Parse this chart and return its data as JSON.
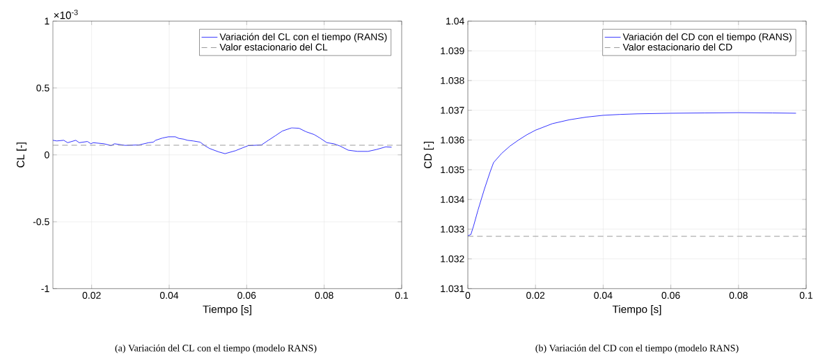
{
  "chart_data": [
    {
      "type": "line",
      "xlabel": "Tiempo [s]",
      "ylabel": "CL [-]",
      "annotations": [
        "×10$^{-3}$",
        "(a) Variación del CL con el tiempo (modelo RANS)"
      ],
      "series": [
        {
          "name": "Variación del CL con el tiempo (RANS)",
          "color": "#0000ff",
          "x": [
            0.01,
            0.011,
            0.0128,
            0.0138,
            0.0159,
            0.0168,
            0.0189,
            0.0198,
            0.0204,
            0.0232,
            0.025,
            0.0259,
            0.0286,
            0.0322,
            0.0347,
            0.0359,
            0.0365,
            0.0383,
            0.0398,
            0.0416,
            0.0425,
            0.0438,
            0.0447,
            0.0462,
            0.048,
            0.0492,
            0.0504,
            0.0528,
            0.0544,
            0.0571,
            0.0589,
            0.0604,
            0.0638,
            0.0656,
            0.0674,
            0.0692,
            0.0716,
            0.0735,
            0.0753,
            0.0774,
            0.0789,
            0.0807,
            0.0825,
            0.0841,
            0.0862,
            0.0886,
            0.0913,
            0.0935,
            0.0959,
            0.0974
          ],
          "values": [
            0.109,
            0.104,
            0.109,
            0.091,
            0.109,
            0.091,
            0.1,
            0.083,
            0.091,
            0.083,
            0.069,
            0.083,
            0.071,
            0.074,
            0.091,
            0.095,
            0.109,
            0.126,
            0.135,
            0.135,
            0.123,
            0.117,
            0.109,
            0.104,
            0.095,
            0.069,
            0.048,
            0.022,
            0.009,
            0.031,
            0.052,
            0.069,
            0.074,
            0.109,
            0.143,
            0.178,
            0.202,
            0.199,
            0.173,
            0.152,
            0.126,
            0.091,
            0.083,
            0.066,
            0.035,
            0.026,
            0.026,
            0.04,
            0.06,
            0.057
          ]
        }
      ],
      "ref_lines": [
        {
          "axis": "y",
          "value": 0.072,
          "label": "Valor estacionario del CL",
          "color": "#808080",
          "line_style": "dashed"
        }
      ],
      "xlim": [
        0.01,
        0.1
      ],
      "ylim": [
        -1,
        1
      ],
      "xticks": [
        0.02,
        0.04,
        0.06,
        0.08,
        0.1
      ],
      "yticks": [
        -1,
        -0.5,
        0,
        0.5,
        1
      ],
      "grid": true,
      "legend": "top right",
      "marker": "none"
    },
    {
      "type": "line",
      "xlabel": "Tiempo [s]",
      "ylabel": "CD [-]",
      "annotations": [
        "(b) Variación del CD con el tiempo (modelo RANS)"
      ],
      "series": [
        {
          "name": "Variación del CD con el tiempo (RANS)",
          "color": "#0000ff",
          "x": [
            0,
            0.0009,
            0.0017,
            0.003,
            0.0049,
            0.0066,
            0.0076,
            0.01,
            0.0125,
            0.015,
            0.0175,
            0.02,
            0.025,
            0.03,
            0.035,
            0.04,
            0.045,
            0.05,
            0.06,
            0.07,
            0.08,
            0.09,
            0.097
          ],
          "values": [
            1.03278,
            1.03282,
            1.03311,
            1.03364,
            1.03435,
            1.03493,
            1.03524,
            1.03555,
            1.0358,
            1.036,
            1.03618,
            1.03633,
            1.03655,
            1.03668,
            1.03677,
            1.03683,
            1.03686,
            1.03688,
            1.0369,
            1.03691,
            1.03692,
            1.03691,
            1.0369
          ]
        }
      ],
      "ref_lines": [
        {
          "axis": "y",
          "value": 1.03276,
          "label": "Valor estacionario del CD",
          "color": "#808080",
          "line_style": "dashed"
        }
      ],
      "xlim": [
        0,
        0.1
      ],
      "ylim": [
        1.031,
        1.04
      ],
      "xticks": [
        0,
        0.02,
        0.04,
        0.06,
        0.08,
        0.1
      ],
      "yticks": [
        1.031,
        1.032,
        1.033,
        1.034,
        1.035,
        1.036,
        1.037,
        1.038,
        1.039,
        1.04
      ],
      "grid": true,
      "legend": "top right",
      "marker": "none"
    }
  ]
}
